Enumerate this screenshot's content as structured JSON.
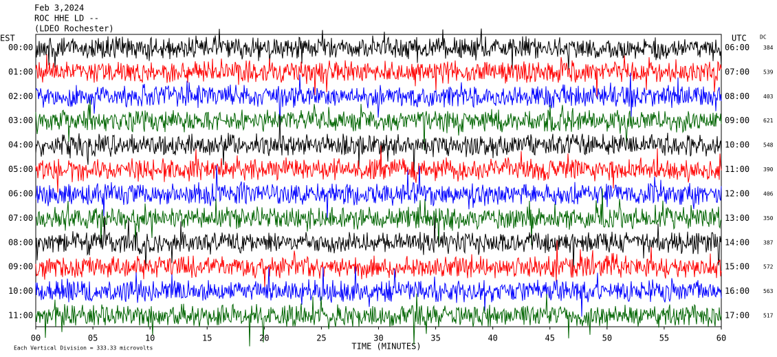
{
  "header": {
    "date": "Feb 3,2024",
    "station": "ROC HHE LD --",
    "network": "(LDEO Rochester)"
  },
  "chart_data": {
    "type": "helicorder",
    "left_label": "EST",
    "right_label": "UTC",
    "dc_label": "DC",
    "xlabel": "TIME (MINUTES)",
    "footer": "Each Vertical Division =  333.33 microvolts",
    "xlim": [
      0,
      60
    ],
    "xticks": [
      {
        "value": 0,
        "label": "00"
      },
      {
        "value": 5,
        "label": "05"
      },
      10,
      15,
      20,
      25,
      30,
      35,
      40,
      45,
      50,
      55,
      60
    ],
    "rows": [
      {
        "est": "00:00",
        "utc": "06:00",
        "dc": 384,
        "color": "#000000"
      },
      {
        "est": "01:00",
        "utc": "07:00",
        "dc": 539,
        "color": "#ff0000"
      },
      {
        "est": "02:00",
        "utc": "08:00",
        "dc": 403,
        "color": "#0000ff"
      },
      {
        "est": "03:00",
        "utc": "09:00",
        "dc": 621,
        "color": "#006400"
      },
      {
        "est": "04:00",
        "utc": "10:00",
        "dc": 548,
        "color": "#000000"
      },
      {
        "est": "05:00",
        "utc": "11:00",
        "dc": 390,
        "color": "#ff0000"
      },
      {
        "est": "06:00",
        "utc": "12:00",
        "dc": 406,
        "color": "#0000ff"
      },
      {
        "est": "07:00",
        "utc": "13:00",
        "dc": 350,
        "color": "#006400"
      },
      {
        "est": "08:00",
        "utc": "14:00",
        "dc": 387,
        "color": "#000000"
      },
      {
        "est": "09:00",
        "utc": "15:00",
        "dc": 572,
        "color": "#ff0000"
      },
      {
        "est": "10:00",
        "utc": "16:00",
        "dc": 563,
        "color": "#0000ff"
      },
      {
        "est": "11:00",
        "utc": "17:00",
        "dc": 517,
        "color": "#006400"
      }
    ]
  }
}
